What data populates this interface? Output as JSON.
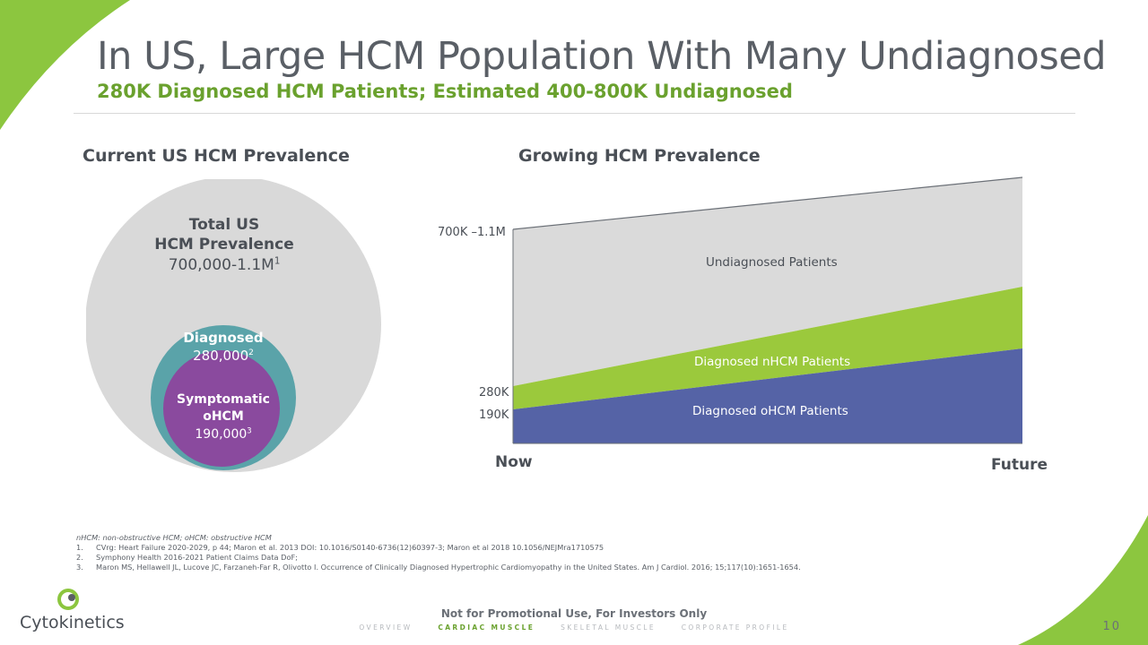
{
  "header": {
    "title": "In US, Large HCM Population With Many Undiagnosed",
    "subtitle": "280K Diagnosed HCM Patients; Estimated 400-800K Undiagnosed"
  },
  "left_panel": {
    "heading": "Current US HCM Prevalence",
    "total": {
      "line1": "Total US",
      "line2": "HCM Prevalence",
      "value": "700,000-1.1M",
      "ref": "1"
    },
    "diagnosed": {
      "label": "Diagnosed",
      "value": "280,000",
      "ref": "2"
    },
    "symptomatic": {
      "line1": "Symptomatic",
      "line2": "oHCM",
      "value": "190,000",
      "ref": "3"
    }
  },
  "right_panel": {
    "heading": "Growing HCM Prevalence"
  },
  "chart_data": {
    "type": "area",
    "x": [
      "Now",
      "Future"
    ],
    "y_tick_labels": [
      "700K –1.1M",
      "280K",
      "190K"
    ],
    "series": [
      {
        "name": "Diagnosed oHCM Patients",
        "color": "#5563a6"
      },
      {
        "name": "Diagnosed nHCM Patients",
        "color": "#9bc93c"
      },
      {
        "name": "Undiagnosed Patients",
        "color": "#dadada"
      }
    ],
    "stacked": true,
    "trend": "increasing"
  },
  "footnotes": {
    "abbrev": "nHCM: non-obstructive HCM; oHCM: obstructive HCM",
    "items": [
      {
        "num": "1.",
        "text": "CVrg: Heart Failure 2020-2029, p 44; Maron et al. 2013 DOI: 10.1016/S0140-6736(12)60397-3; Maron et al 2018 10.1056/NEJMra1710575"
      },
      {
        "num": "2.",
        "text": "Symphony Health 2016-2021 Patient Claims Data DoF;"
      },
      {
        "num": "3.",
        "text": "Maron MS, Hellawell JL, Lucove JC, Farzaneh-Far R, Olivotto I. Occurrence of Clinically Diagnosed Hypertrophic Cardiomyopathy in the United States. Am J Cardiol. 2016; 15;117(10):1651-1654."
      }
    ]
  },
  "footer": {
    "logo": "Cytokinetics",
    "disclaimer": "Not for Promotional Use, For Investors Only",
    "nav": [
      "OVERVIEW",
      "CARDIAC MUSCLE",
      "SKELETAL MUSCLE",
      "CORPORATE PROFILE"
    ],
    "active_nav": "CARDIAC MUSCLE",
    "page_number": "10"
  },
  "colors": {
    "accent_green": "#6aa12e",
    "teal": "#5aa3a9",
    "purple": "#8a4a9e",
    "gray_circle": "#d9d9d9"
  }
}
